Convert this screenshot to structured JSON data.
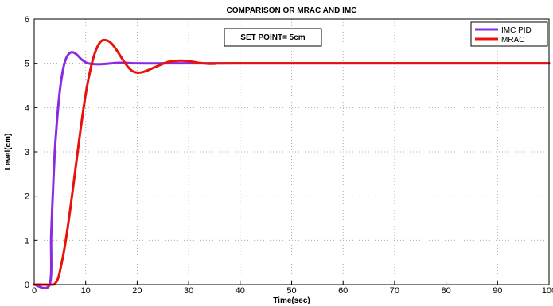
{
  "chart_data": {
    "type": "line",
    "title": "COMPARISON OR MRAC AND IMC",
    "xlabel": "Time(sec)",
    "ylabel": "Level(cm)",
    "xlim": [
      0,
      100
    ],
    "ylim": [
      0,
      6
    ],
    "xticks": [
      "0",
      "10",
      "20",
      "30",
      "40",
      "50",
      "60",
      "70",
      "80",
      "90",
      "100"
    ],
    "yticks": [
      "0",
      "1",
      "2",
      "3",
      "4",
      "5",
      "6"
    ],
    "grid": true,
    "legend_position": "top-right",
    "annotation": "SET POINT= 5cm",
    "series": [
      {
        "name": "IMC PID",
        "color": "#8a2be2",
        "x": [
          0,
          3,
          3.3,
          3.6,
          4.0,
          4.5,
          5.0,
          5.5,
          6.0,
          6.5,
          7.0,
          7.5,
          8.0,
          8.5,
          9.0,
          9.5,
          10.0,
          10.5,
          11,
          12,
          13,
          14,
          15,
          16,
          18,
          20,
          25,
          30,
          40,
          100
        ],
        "y": [
          0,
          0,
          1.1,
          2.0,
          3.0,
          3.8,
          4.4,
          4.8,
          5.05,
          5.18,
          5.24,
          5.25,
          5.22,
          5.17,
          5.11,
          5.06,
          5.02,
          5.0,
          4.99,
          4.98,
          4.98,
          4.99,
          5.0,
          5.01,
          5.01,
          5.0,
          5.0,
          5.0,
          5.0,
          5.0
        ]
      },
      {
        "name": "MRAC",
        "color": "#e8120c",
        "x": [
          0,
          3.5,
          4.0,
          4.5,
          5,
          6,
          7,
          8,
          9,
          10,
          11,
          12,
          13,
          14,
          15,
          16,
          17,
          18,
          19,
          20,
          21,
          22,
          23,
          24,
          25,
          26,
          27,
          28,
          29,
          30,
          31,
          32,
          33,
          34,
          35,
          40,
          100
        ],
        "y": [
          0,
          0,
          0.02,
          0.1,
          0.3,
          0.9,
          1.7,
          2.6,
          3.5,
          4.3,
          4.9,
          5.3,
          5.5,
          5.52,
          5.45,
          5.3,
          5.12,
          4.95,
          4.83,
          4.79,
          4.8,
          4.84,
          4.89,
          4.94,
          4.99,
          5.03,
          5.05,
          5.06,
          5.06,
          5.05,
          5.03,
          5.01,
          5.0,
          4.99,
          4.99,
          5.0,
          5.0
        ]
      }
    ]
  }
}
